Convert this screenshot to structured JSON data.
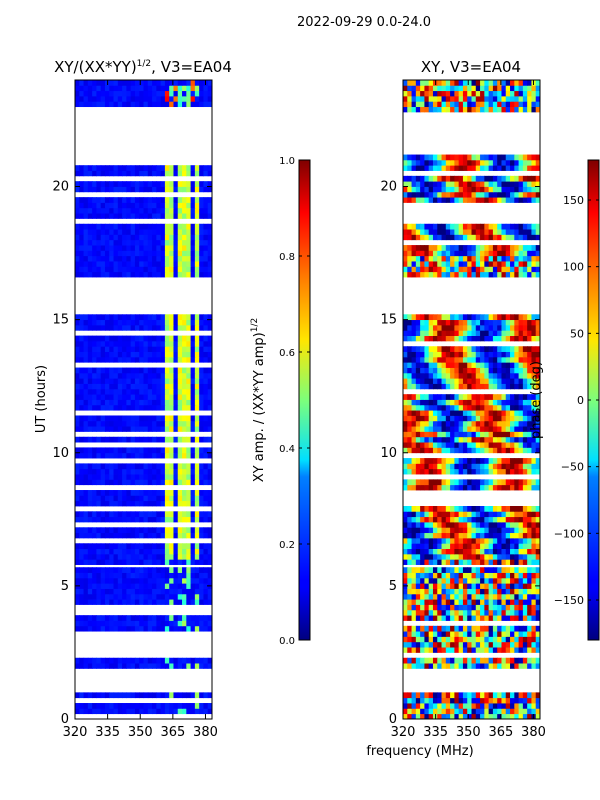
{
  "suptitle": "2022-09-29 0.0-24.0",
  "xlabel_shared": "frequency (MHz)",
  "chart_data": [
    {
      "type": "heatmap",
      "title": "XY/(XX*YY)^1/2, V3=EA04",
      "title_main": "XY/(XX*YY)",
      "title_sup": "1/2",
      "title_tail": ", V3=EA04",
      "xlabel": "frequency (MHz)",
      "ylabel": "UT (hours)",
      "xlim": [
        320,
        383
      ],
      "ylim": [
        0,
        24
      ],
      "xticks": [
        320,
        335,
        350,
        365,
        380
      ],
      "yticks": [
        0,
        5,
        10,
        15,
        20
      ],
      "colorbar": {
        "label": "XY amp. / (XX*YY amp)",
        "label_sup": "1/2",
        "range": [
          0.0,
          1.0
        ],
        "ticks": [
          "0.0",
          "0.2",
          "0.4",
          "0.6",
          "0.8",
          "1.0"
        ],
        "tick_values": [
          0.0,
          0.2,
          0.4,
          0.6,
          0.8,
          1.0
        ],
        "colormap": "jet"
      },
      "data_blocks_ut": [
        [
          0.0,
          1.0
        ],
        [
          1.9,
          5.6
        ],
        [
          5.8,
          15.1
        ],
        [
          16.6,
          21.1
        ],
        [
          22.8,
          24.0
        ]
      ],
      "bright_channels_mhz": [
        [
          362,
          366
        ],
        [
          367,
          369
        ],
        [
          370,
          373
        ],
        [
          375,
          378
        ]
      ],
      "background_level": 0.1,
      "bright_level": 0.5
    },
    {
      "type": "heatmap",
      "title": "XY, V3=EA04",
      "xlabel": "frequency (MHz)",
      "ylabel": "phase (deg)",
      "xlim": [
        320,
        383
      ],
      "ylim": [
        0,
        24
      ],
      "xticks": [
        320,
        335,
        350,
        365,
        380
      ],
      "yticks": [
        0,
        5,
        10,
        15,
        20
      ],
      "colorbar": {
        "label": "phase (deg)",
        "range": [
          -180,
          180
        ],
        "ticks": [
          "150",
          "100",
          "50",
          "0",
          "−50",
          "−100",
          "−150"
        ],
        "tick_values": [
          150,
          100,
          50,
          0,
          -50,
          -100,
          -150
        ],
        "colormap": "jet"
      },
      "data_blocks_ut": [
        [
          0.0,
          1.0
        ],
        [
          1.9,
          5.6
        ],
        [
          5.8,
          15.1
        ],
        [
          16.6,
          21.1
        ],
        [
          22.8,
          24.0
        ]
      ]
    }
  ]
}
